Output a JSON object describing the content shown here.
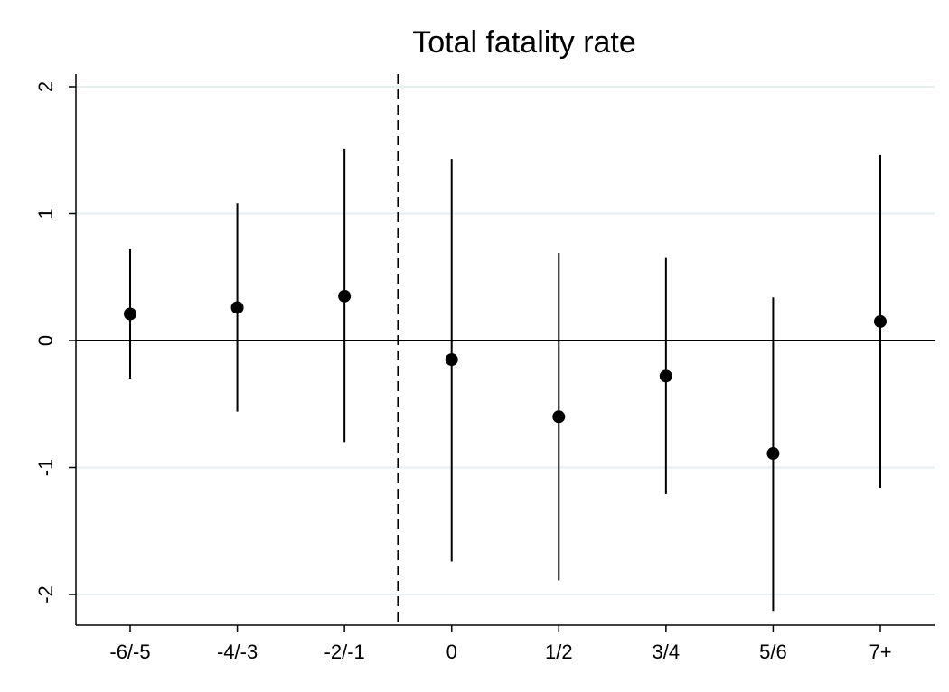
{
  "chart_data": {
    "type": "scatter",
    "title": "Total fatality rate",
    "xlabel": "",
    "ylabel": "",
    "categories": [
      "-6/-5",
      "-4/-3",
      "-2/-1",
      "0",
      "1/2",
      "3/4",
      "5/6",
      "7+"
    ],
    "series": [
      {
        "estimates": [
          0.21,
          0.26,
          0.35,
          -0.15,
          -0.6,
          -0.28,
          -0.89,
          0.15
        ],
        "ci_lower": [
          -0.3,
          -0.56,
          -0.8,
          -1.74,
          -1.89,
          -1.21,
          -2.13,
          -1.16
        ],
        "ci_upper": [
          0.72,
          1.08,
          1.51,
          1.43,
          0.69,
          0.65,
          0.34,
          1.46
        ]
      }
    ],
    "ylim": [
      -2.2,
      2.1
    ],
    "yticks": [
      -2,
      -1,
      0,
      1,
      2
    ],
    "ytick_labels": [
      "-2",
      "-1",
      "0",
      "1",
      "2"
    ],
    "reference_line_y": 0,
    "event_line_between": [
      "-2/-1",
      "0"
    ],
    "grid": true,
    "colors": {
      "marker": "#000000",
      "grid": "#e6eef0",
      "axis": "#000000"
    }
  }
}
